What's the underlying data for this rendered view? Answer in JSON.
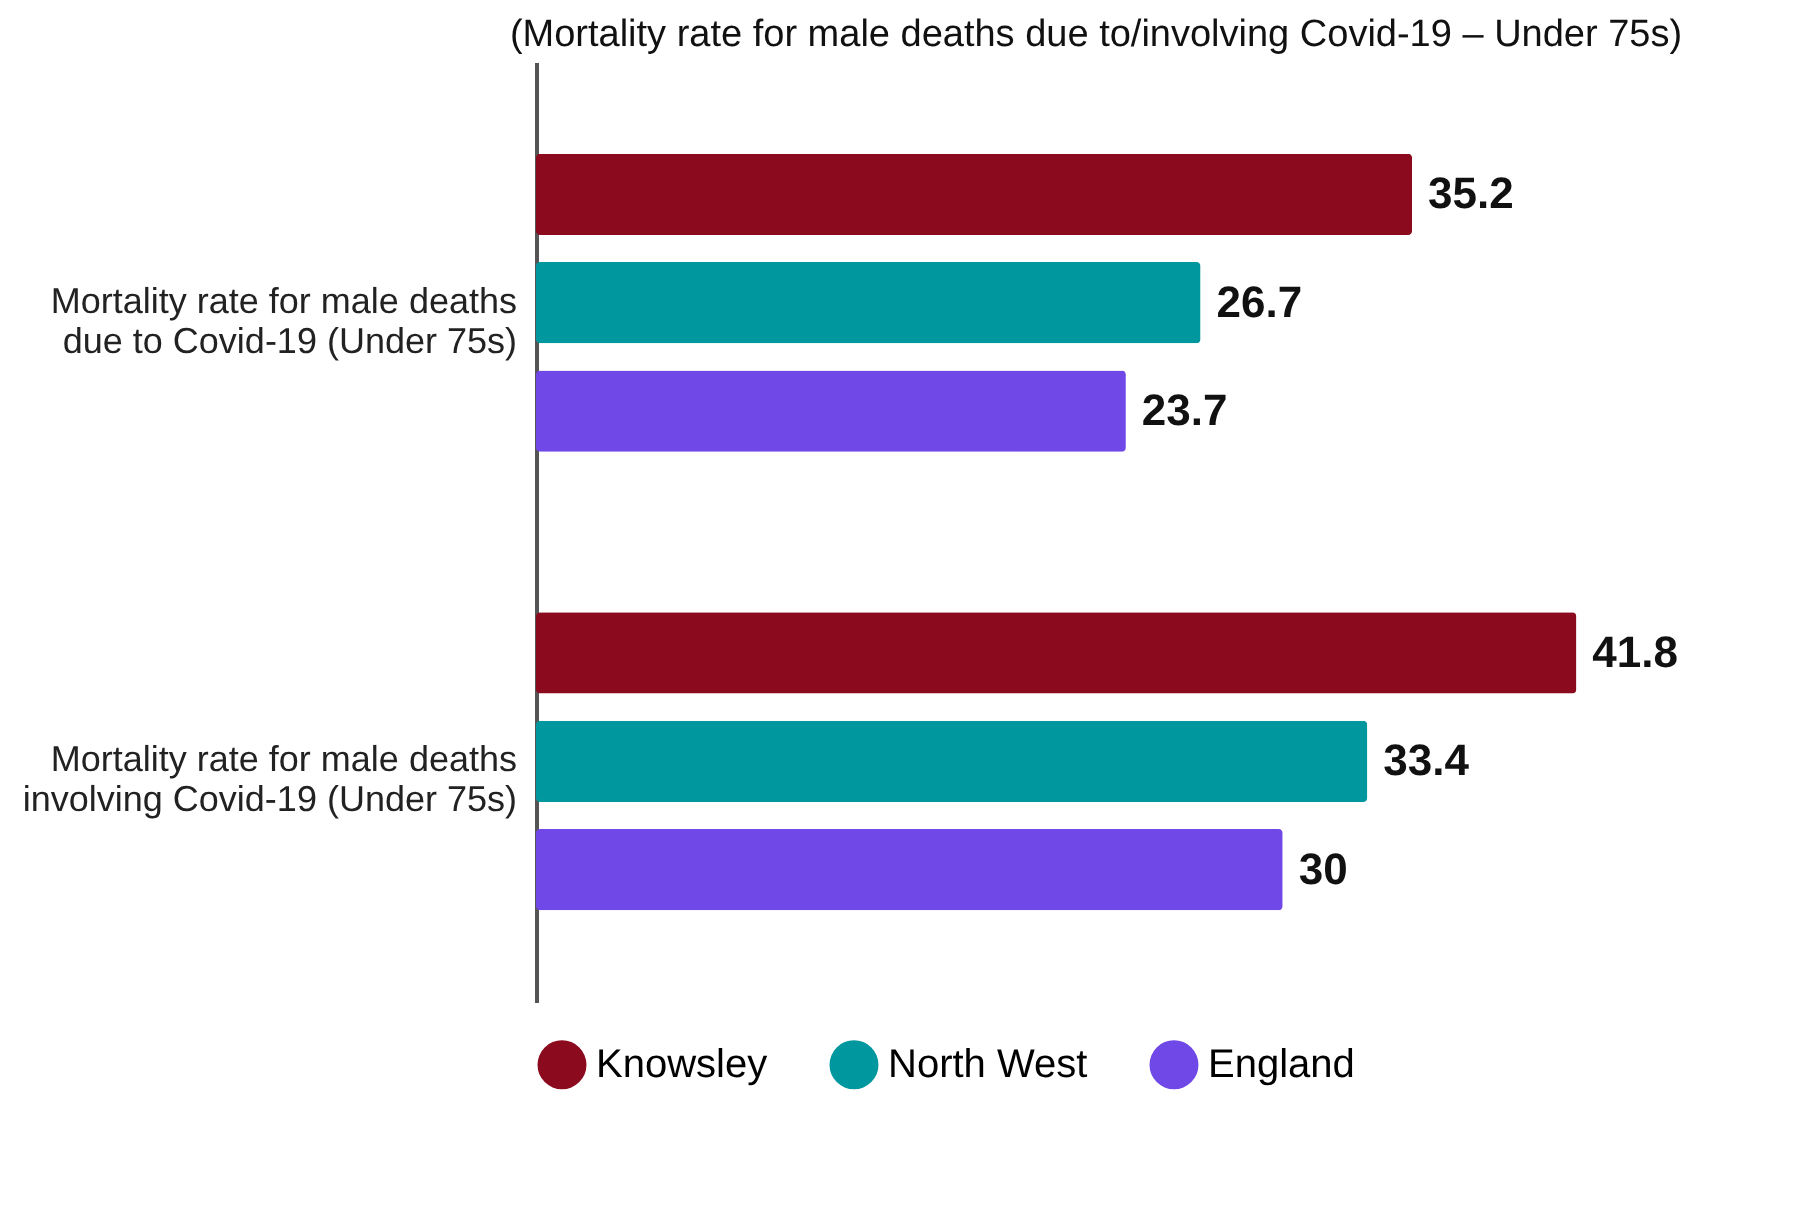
{
  "chart_data": {
    "type": "bar",
    "orientation": "horizontal",
    "title": "(Mortality rate for male deaths due to/involving Covid-19 – Under 75s)",
    "categories": [
      "Mortality rate for male deaths due to Covid-19 (Under 75s)",
      "Mortality rate for male deaths involving Covid-19 (Under 75s)"
    ],
    "series": [
      {
        "name": "Knowsley",
        "color": "#8b0a1e",
        "values": [
          35.2,
          41.8
        ]
      },
      {
        "name": "North West",
        "color": "#00979f",
        "values": [
          26.7,
          33.4
        ]
      },
      {
        "name": "England",
        "color": "#7048e8",
        "values": [
          23.7,
          30
        ]
      }
    ],
    "data_labels": true,
    "legend": "bottom",
    "grid": false,
    "tick_labels": "y"
  }
}
